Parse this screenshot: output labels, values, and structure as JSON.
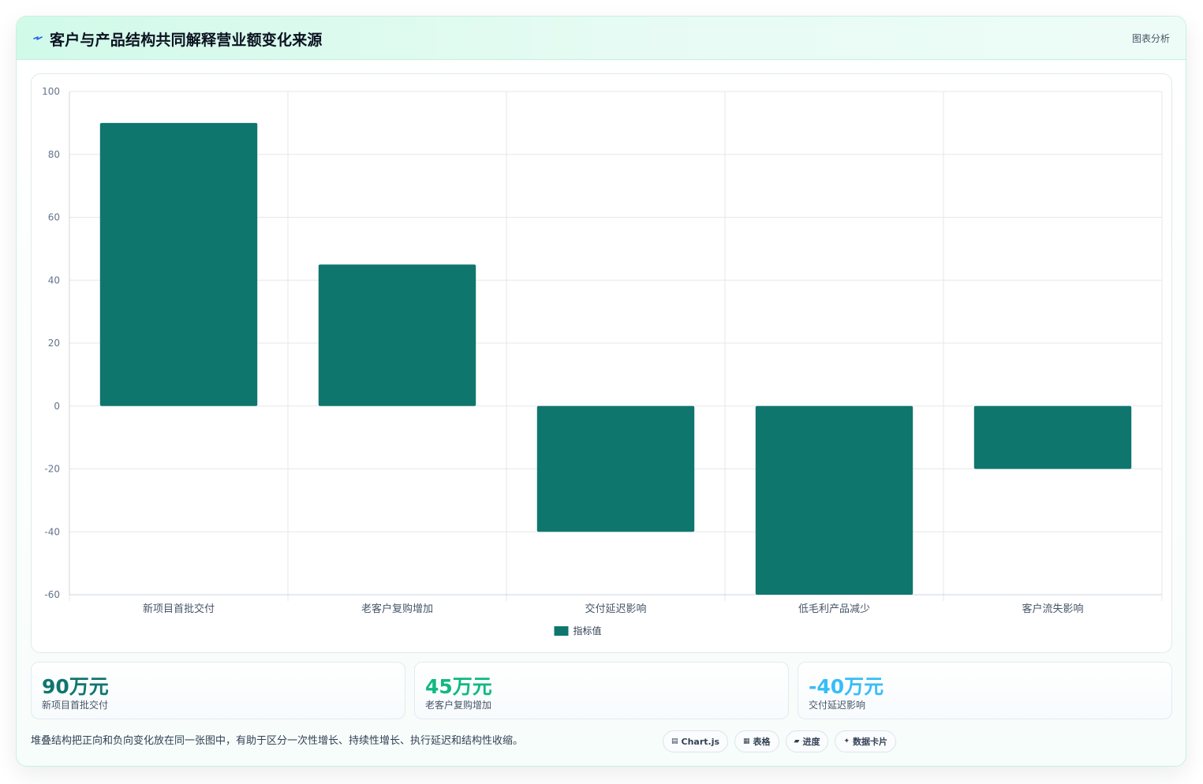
{
  "header": {
    "title": "客户与产品结构共同解释营业额变化来源",
    "tag": "图表分析",
    "icon": "lightning-icon"
  },
  "chart_data": {
    "type": "bar",
    "categories": [
      "新项目首批交付",
      "老客户复购增加",
      "交付延迟影响",
      "低毛利产品减少",
      "客户流失影响"
    ],
    "series": [
      {
        "name": "指标值",
        "values": [
          90,
          45,
          -40,
          -60,
          -20
        ],
        "color": "#0f766e"
      }
    ],
    "ylim": [
      -60,
      100
    ],
    "yticks": [
      100,
      80,
      60,
      40,
      20,
      0,
      -20,
      -40,
      -60
    ],
    "xlabel": "",
    "ylabel": "",
    "grid": true,
    "legend_position": "bottom"
  },
  "kpis": [
    {
      "value": "90万元",
      "label": "新项目首批交付",
      "color": "#0f766e"
    },
    {
      "value": "45万元",
      "label": "老客户复购增加",
      "color": "#10b981"
    },
    {
      "value": "-40万元",
      "label": "交付延迟影响",
      "color": "#38bdf8"
    }
  ],
  "footnote": "堆叠结构把正向和负向变化放在同一张图中，有助于区分一次性增长、持续性增长、执行延迟和结构性收缩。",
  "pills": [
    {
      "glyph": "▤",
      "label": "Chart.js",
      "icon": "chart-icon"
    },
    {
      "glyph": "▦",
      "label": "表格",
      "icon": "table-icon"
    },
    {
      "glyph": "▰",
      "label": "进度",
      "icon": "progress-icon"
    },
    {
      "glyph": "✦",
      "label": "数据卡片",
      "icon": "card-icon"
    }
  ]
}
